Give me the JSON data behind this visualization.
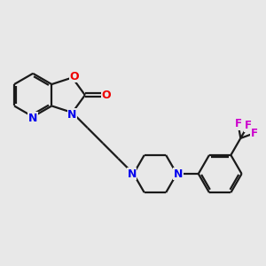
{
  "background_color": "#e8e8e8",
  "bond_color": "#1a1a1a",
  "nitrogen_color": "#0000ee",
  "oxygen_color": "#ee0000",
  "fluorine_color": "#cc00cc",
  "lw": 1.6,
  "figsize": [
    3.0,
    3.0
  ],
  "dpi": 100,
  "xlim": [
    -0.5,
    6.5
  ],
  "ylim": [
    -3.5,
    2.5
  ]
}
